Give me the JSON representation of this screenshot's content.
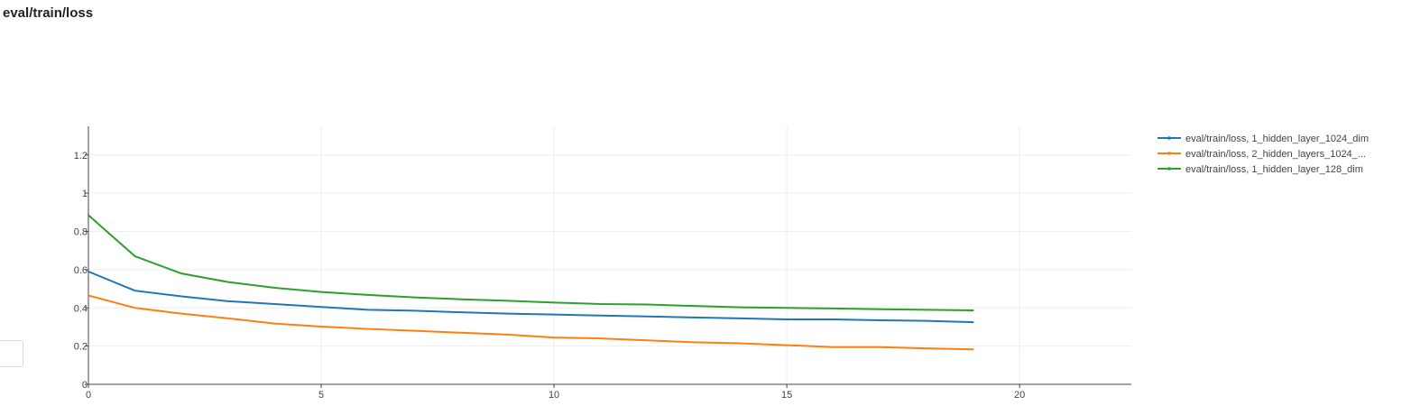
{
  "page": {
    "title": "eval/train/loss"
  },
  "chart_data": {
    "type": "line",
    "title": "eval/train/loss",
    "xlabel": "",
    "ylabel": "",
    "xlim": [
      0,
      22.4
    ],
    "ylim": [
      0,
      1.35
    ],
    "xticks": [
      0,
      5,
      10,
      15,
      20
    ],
    "yticks": [
      0,
      0.2,
      0.4,
      0.6,
      0.8,
      1,
      1.2
    ],
    "grid": true,
    "legend_position": "top-right",
    "x": [
      0,
      1,
      2,
      3,
      4,
      5,
      6,
      7,
      8,
      9,
      10,
      11,
      12,
      13,
      14,
      15,
      16,
      17,
      18,
      19
    ],
    "series": [
      {
        "name": "eval/train/loss, 1_hidden_layer_1024_dim",
        "color": "#1f77b4",
        "values": [
          0.59,
          0.49,
          0.46,
          0.435,
          0.42,
          0.405,
          0.39,
          0.385,
          0.377,
          0.37,
          0.365,
          0.36,
          0.355,
          0.35,
          0.345,
          0.34,
          0.34,
          0.335,
          0.332,
          0.325
        ]
      },
      {
        "name": "eval/train/loss, 2_hidden_layers_1024_...",
        "color": "#ff7f0e",
        "values": [
          0.465,
          0.4,
          0.37,
          0.345,
          0.318,
          0.302,
          0.29,
          0.28,
          0.27,
          0.26,
          0.245,
          0.24,
          0.23,
          0.22,
          0.215,
          0.205,
          0.195,
          0.195,
          0.188,
          0.183
        ]
      },
      {
        "name": "eval/train/loss, 1_hidden_layer_128_dim",
        "color": "#2ca02c",
        "values": [
          0.885,
          0.67,
          0.58,
          0.535,
          0.505,
          0.483,
          0.468,
          0.455,
          0.445,
          0.437,
          0.428,
          0.42,
          0.418,
          0.41,
          0.403,
          0.4,
          0.397,
          0.393,
          0.39,
          0.387
        ]
      }
    ]
  }
}
